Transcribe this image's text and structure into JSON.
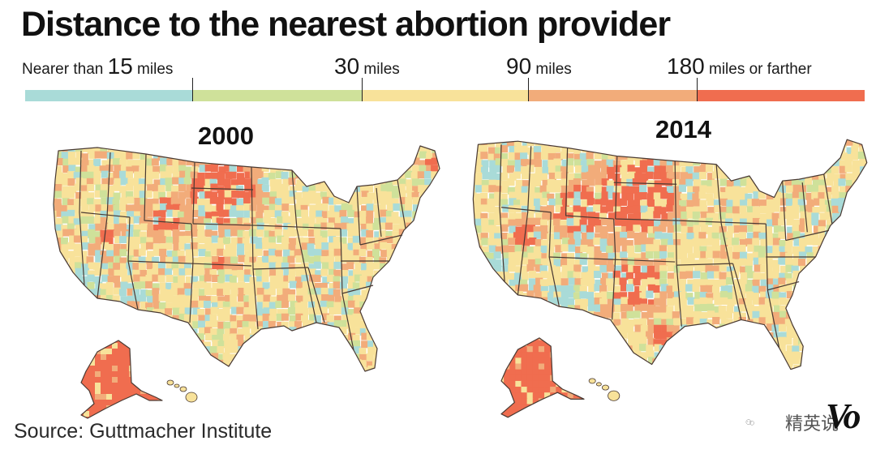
{
  "title": "Distance to the nearest abortion provider",
  "legend": {
    "labels": [
      {
        "num": "",
        "text": "Nearer than ",
        "num2": "15",
        "text2": " miles"
      },
      {
        "num": "30",
        "text": " miles"
      },
      {
        "num": "90",
        "text": " miles"
      },
      {
        "num": "180",
        "text": " miles or farther"
      }
    ],
    "categories": [
      {
        "name": "Nearer than 15 miles",
        "color": "#a9dbd8"
      },
      {
        "name": "15-30 miles",
        "color": "#cfe19a"
      },
      {
        "name": "30-90 miles",
        "color": "#f8e29a"
      },
      {
        "name": "90-180 miles",
        "color": "#f2ac7a"
      },
      {
        "name": "180 miles or farther",
        "color": "#f06d4f"
      }
    ]
  },
  "maps": [
    {
      "year": "2000"
    },
    {
      "year": "2014"
    }
  ],
  "source": "Source: Guttmacher Institute",
  "watermark": {
    "text": "精英说",
    "logo": "Vo"
  }
}
